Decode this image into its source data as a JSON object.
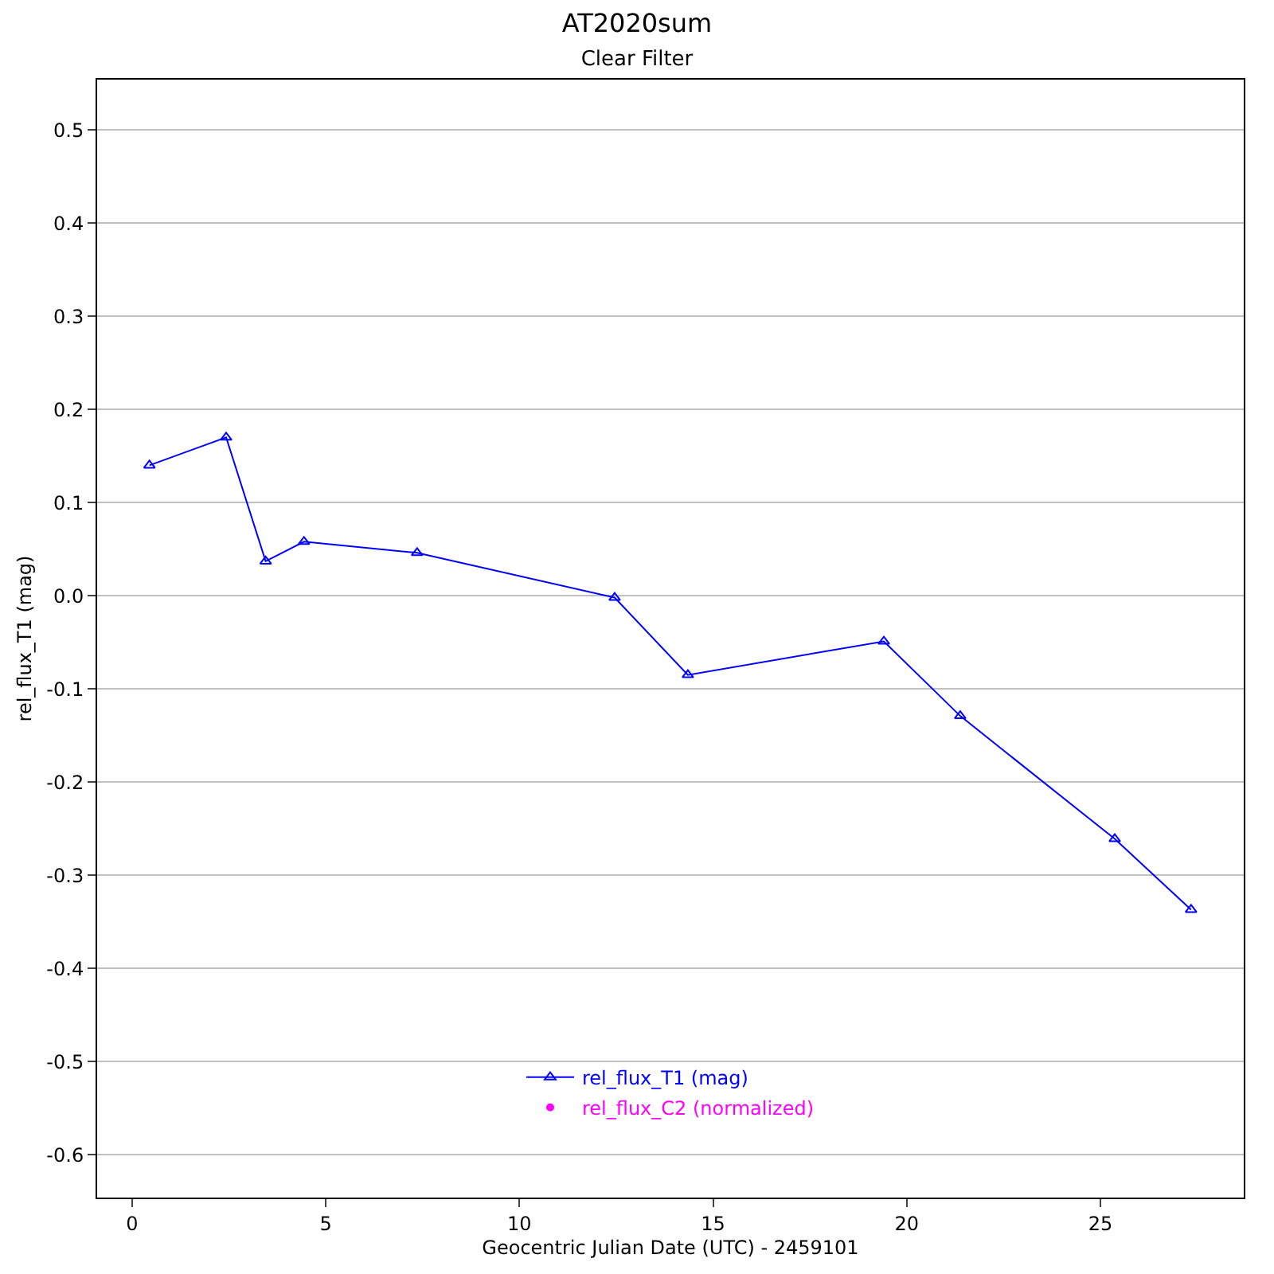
{
  "chart_data": {
    "type": "line",
    "title": "AT2020sum",
    "subtitle": "Clear Filter",
    "xlabel": "Geocentric Julian Date (UTC) - 2459101",
    "ylabel": "rel_flux_T1 (mag)",
    "x": [
      0.45,
      2.43,
      3.45,
      4.44,
      7.36,
      12.46,
      14.35,
      19.41,
      21.38,
      25.37,
      27.34
    ],
    "series": [
      {
        "name": "rel_flux_T1 (mag)",
        "color": "#0000ff",
        "marker": "triangle",
        "values": [
          0.14,
          0.17,
          0.037,
          0.058,
          0.046,
          -0.002,
          -0.085,
          -0.049,
          -0.129,
          -0.261,
          -0.337
        ]
      },
      {
        "name": "rel_flux_C2 (normalized)",
        "color": "#ff00ff",
        "type": "scatter",
        "marker": "circle",
        "values": [
          null,
          null,
          null,
          null,
          null,
          null,
          null,
          null,
          null,
          null,
          null
        ]
      }
    ],
    "xlim": [
      -0.9,
      28.7
    ],
    "xticks": [
      0,
      5,
      10,
      15,
      20,
      25
    ],
    "ylim": [
      -0.646,
      0.554
    ],
    "yticks": [
      -0.6,
      -0.5,
      -0.4,
      -0.3,
      -0.2,
      -0.1,
      {
        "value": 0,
        "label": "0.0"
      },
      0.1,
      0.2,
      0.3,
      0.4,
      0.5
    ],
    "grid": "y",
    "legend": "bottom"
  }
}
